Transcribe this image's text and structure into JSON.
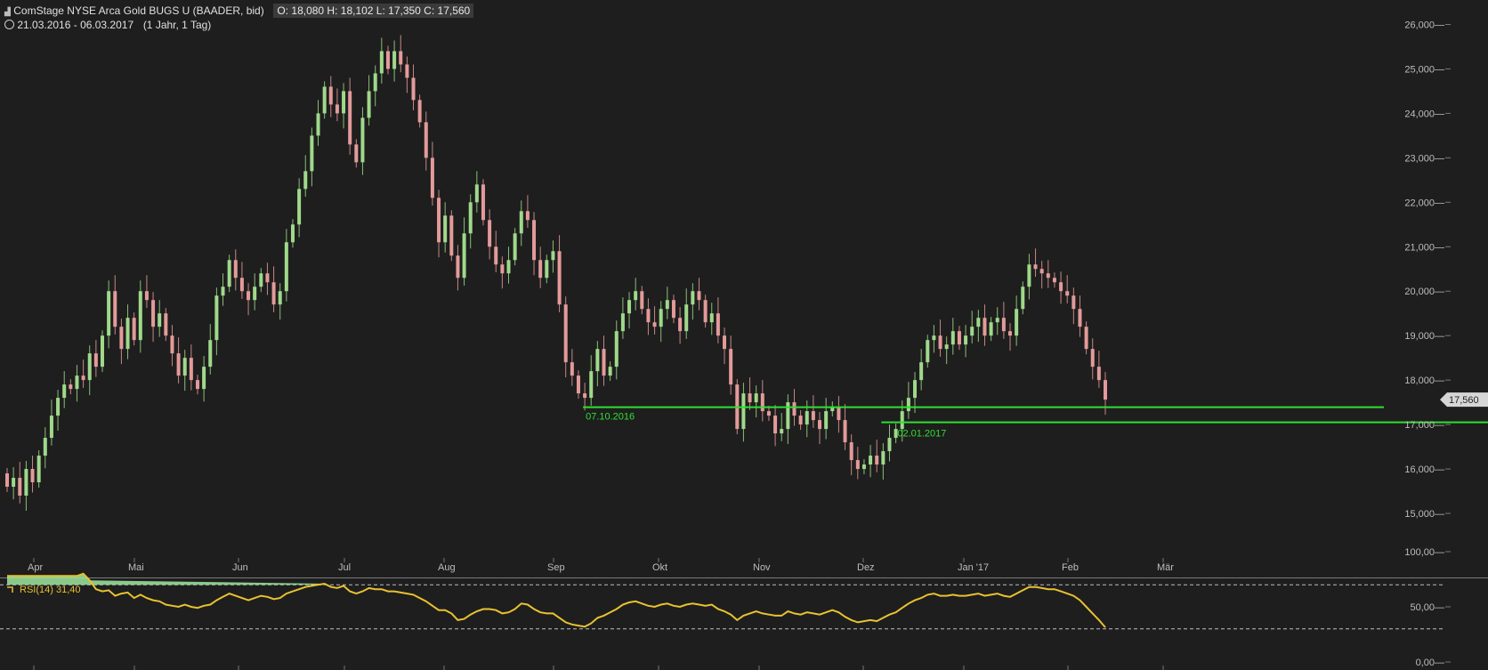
{
  "header": {
    "title": "ComStage NYSE Arca Gold BUGS U (BAADER, bid)",
    "ohlc": "O: 18,080  H: 18,102  L: 17,350  C: 17,560",
    "range": "21.03.2016 - 06.03.2017",
    "interval": "(1 Jahr, 1 Tag)",
    "colors": {
      "up": "#9fd98a",
      "down": "#e49a9a",
      "level": "#2ee02e",
      "rsi": "#e8c230",
      "rsi_fill": "#9ee89e"
    }
  },
  "chart_data": [
    {
      "type": "candlestick",
      "title": "ComStage NYSE Arca Gold BUGS U (BAADER, bid)",
      "x_months": [
        "Apr",
        "Mai",
        "Jun",
        "Jul",
        "Aug",
        "Sep",
        "Okt",
        "Nov",
        "Dez",
        "Jan '17",
        "Feb",
        "Mär"
      ],
      "y_ticks": [
        "26,000",
        "25,000",
        "24,000",
        "23,000",
        "22,000",
        "21,000",
        "20,000",
        "19,000",
        "18,000",
        "17,000",
        "16,000",
        "15,000"
      ],
      "ylim": [
        14500,
        26500
      ],
      "last_price": "17,560",
      "levels": [
        {
          "label": "07.10.2016",
          "value": 17390
        },
        {
          "label": "02.01.2017",
          "value": 17050
        }
      ],
      "closes": [
        15600,
        15800,
        15400,
        16000,
        15700,
        16300,
        16700,
        17200,
        17600,
        17900,
        17800,
        18100,
        18000,
        18600,
        18300,
        19000,
        20000,
        19200,
        18700,
        19400,
        18900,
        20000,
        19800,
        19200,
        19500,
        19000,
        18600,
        18100,
        18500,
        18000,
        17800,
        18300,
        18900,
        19900,
        20100,
        20700,
        20300,
        20000,
        19800,
        20100,
        20400,
        20200,
        19700,
        20000,
        21100,
        21500,
        22300,
        22700,
        23500,
        24000,
        24600,
        24200,
        24000,
        24500,
        23300,
        22900,
        23900,
        24500,
        24900,
        25400,
        25000,
        25400,
        25100,
        24800,
        24300,
        23800,
        23000,
        22100,
        21100,
        21700,
        20800,
        20300,
        21300,
        22000,
        22400,
        21600,
        21000,
        20600,
        20400,
        20700,
        21300,
        21800,
        21600,
        20700,
        20300,
        20700,
        20900,
        19700,
        18400,
        18100,
        17700,
        17600,
        18200,
        18700,
        18100,
        18300,
        19100,
        19500,
        19800,
        20000,
        19600,
        19300,
        19200,
        19600,
        19800,
        19400,
        19100,
        19700,
        20000,
        19800,
        19300,
        19500,
        19000,
        18700,
        17900,
        16900,
        17700,
        17500,
        17700,
        17300,
        17200,
        16800,
        16900,
        17500,
        17200,
        17000,
        17300,
        17100,
        16900,
        17300,
        17400,
        17100,
        16600,
        16200,
        16000,
        16100,
        16300,
        16100,
        16400,
        16700,
        16900,
        17300,
        17600,
        18000,
        18400,
        18900,
        19000,
        18700,
        18800,
        19100,
        18800,
        19000,
        19200,
        19400,
        19000,
        19300,
        19400,
        19100,
        19000,
        19600,
        20100,
        20600,
        20500,
        20400,
        20300,
        20200,
        20000,
        19900,
        19600,
        19200,
        18700,
        18300,
        18000,
        17560
      ]
    },
    {
      "type": "line",
      "title": "RSI(14)",
      "value_label": "31,40",
      "y_ticks": [
        "100,00",
        "50,00",
        "0,00"
      ],
      "ylim": [
        0,
        100
      ],
      "bands": [
        70,
        30
      ],
      "values": [
        78,
        78,
        78,
        78,
        78,
        78,
        78,
        78,
        78,
        78,
        78,
        78,
        80,
        74,
        66,
        64,
        65,
        60,
        62,
        63,
        58,
        61,
        58,
        56,
        55,
        52,
        51,
        50,
        52,
        50,
        49,
        51,
        52,
        56,
        59,
        62,
        60,
        58,
        56,
        58,
        60,
        59,
        57,
        58,
        62,
        64,
        66,
        68,
        69,
        70,
        71,
        68,
        67,
        69,
        64,
        62,
        64,
        67,
        66,
        66,
        64,
        64,
        63,
        62,
        61,
        58,
        55,
        51,
        47,
        47,
        44,
        38,
        39,
        43,
        46,
        48,
        48,
        47,
        44,
        45,
        48,
        53,
        52,
        48,
        45,
        44,
        44,
        40,
        36,
        34,
        33,
        32,
        35,
        40,
        42,
        45,
        48,
        52,
        54,
        55,
        53,
        51,
        50,
        52,
        53,
        51,
        50,
        52,
        53,
        52,
        51,
        52,
        48,
        46,
        43,
        38,
        42,
        44,
        46,
        44,
        43,
        42,
        42,
        46,
        44,
        43,
        45,
        44,
        43,
        45,
        47,
        45,
        41,
        38,
        36,
        37,
        38,
        37,
        40,
        43,
        45,
        49,
        53,
        56,
        58,
        61,
        62,
        60,
        60,
        61,
        60,
        60,
        61,
        62,
        60,
        61,
        62,
        60,
        59,
        62,
        65,
        68,
        68,
        67,
        66,
        66,
        64,
        62,
        60,
        56,
        50,
        44,
        38,
        31.4
      ]
    }
  ]
}
